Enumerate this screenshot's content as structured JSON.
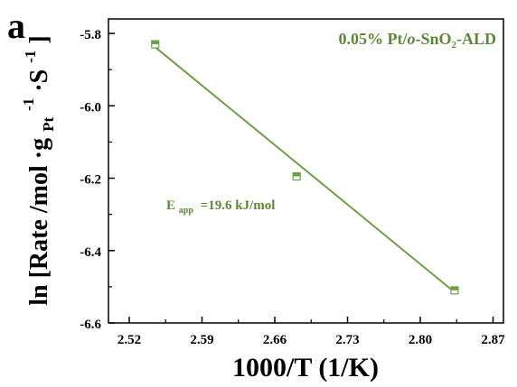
{
  "panel_label": "a",
  "colors": {
    "series": "#6ea046",
    "text_series": "#5a8a32",
    "axis": "#000000"
  },
  "chart_data": {
    "type": "scatter",
    "title": "",
    "xlabel": "1000/T (1/K)",
    "ylabel": {
      "prefix": "ln [Rate /mol ·g",
      "subscript": "Pt",
      "superscript": "-1",
      "middle": "·S",
      "superscript2": "-1",
      "suffix": "]"
    },
    "xlim": [
      2.5,
      2.88
    ],
    "ylim": [
      -6.6,
      -5.76
    ],
    "xticks": [
      2.52,
      2.59,
      2.66,
      2.73,
      2.8,
      2.87
    ],
    "yticks": [
      -6.6,
      -6.4,
      -6.2,
      -6.0,
      -5.8
    ],
    "xtick_labels": [
      "2.52",
      "2.59",
      "2.66",
      "2.73",
      "2.80",
      "2.87"
    ],
    "ytick_labels": [
      "-6.6",
      "-6.4",
      "-6.2",
      "-6.0",
      "-5.8"
    ],
    "series": [
      {
        "name": "0.05% Pt/o-SnO2-ALD",
        "marker": "half-filled-square",
        "x": [
          2.545,
          2.681,
          2.833
        ],
        "y": [
          -5.83,
          -6.195,
          -6.51
        ]
      }
    ],
    "fit": {
      "x": [
        2.545,
        2.833
      ],
      "y": [
        -5.838,
        -6.515
      ]
    },
    "legend": {
      "parts": [
        {
          "t": "0.05% Pt/"
        },
        {
          "t": "o",
          "italic": true
        },
        {
          "t": "-SnO"
        },
        {
          "t": "2",
          "sub": true
        },
        {
          "t": "-ALD"
        }
      ],
      "position": "top-right"
    },
    "annotation": {
      "base": "E",
      "subscript": "app",
      "text": "=19.6 kJ/mol"
    }
  }
}
